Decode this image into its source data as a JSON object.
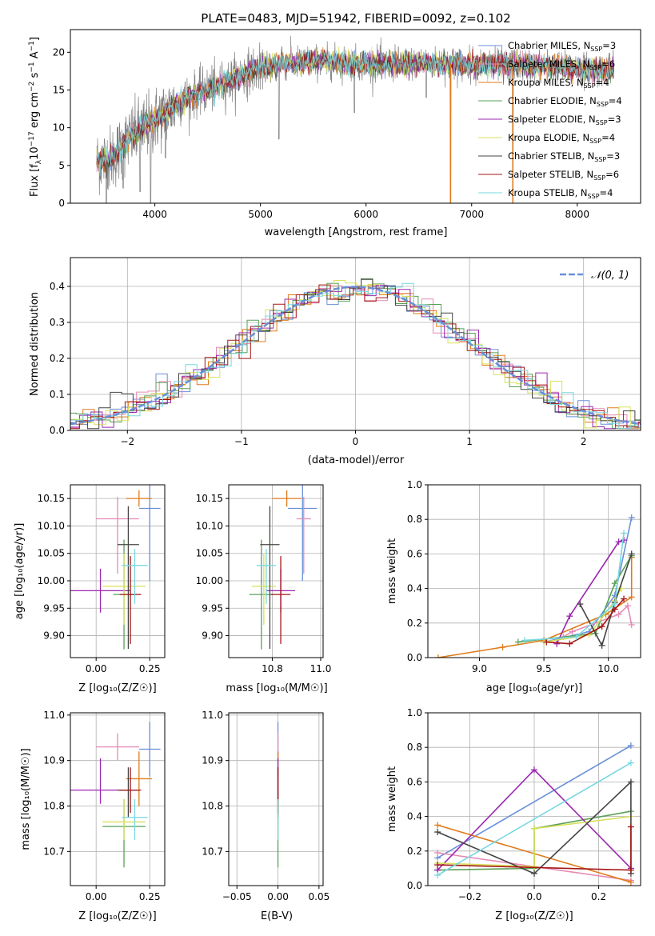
{
  "figure": {
    "title": "PLATE=0483, MJD=51942, FIBERID=0092, z=0.102"
  },
  "legend_spectrum": [
    {
      "prefix": "Chabrier MILES, N",
      "sub": "SSP",
      "suffix": "=3",
      "color": "#6a8fd8"
    },
    {
      "prefix": "Salpeter MILES, N",
      "sub": "SSP",
      "suffix": "=6",
      "color": "#e58ab5"
    },
    {
      "prefix": "Kroupa MILES, N",
      "sub": "SSP",
      "suffix": "=4",
      "color": "#e07b1a"
    },
    {
      "prefix": "Chabrier ELODIE, N",
      "sub": "SSP",
      "suffix": "=4",
      "color": "#5aa055"
    },
    {
      "prefix": "Salpeter ELODIE, N",
      "sub": "SSP",
      "suffix": "=3",
      "color": "#9b27b0"
    },
    {
      "prefix": "Kroupa ELODIE, N",
      "sub": "SSP",
      "suffix": "=4",
      "color": "#d8e05a"
    },
    {
      "prefix": "Chabrier STELIB, N",
      "sub": "SSP",
      "suffix": "=3",
      "color": "#444444"
    },
    {
      "prefix": "Salpeter STELIB, N",
      "sub": "SSP",
      "suffix": "=6",
      "color": "#a51616"
    },
    {
      "prefix": "Kroupa STELIB, N",
      "sub": "SSP",
      "suffix": "=4",
      "color": "#78d8e0"
    }
  ],
  "labels": {
    "spec_xlabel": "wavelength [Angstrom, rest frame]",
    "spec_ylabel_a": "Flux [f",
    "spec_ylabel_a_sub": "λ",
    "spec_ylabel_b": "10",
    "spec_ylabel_b_sup": "−17",
    "spec_ylabel_c": " erg cm",
    "spec_ylabel_c_sup": "−2",
    "spec_ylabel_d": " s",
    "spec_ylabel_d_sup": "−1",
    "spec_ylabel_e": " A",
    "spec_ylabel_e_sup": "−1",
    "spec_ylabel_f": "]",
    "hist_xlabel": "(data-model)/error",
    "hist_ylabel": "Normed distribution",
    "hist_legend": "𝒩(0, 1)",
    "age_label": "age  [log₁₀(age/yr)]",
    "z_label": "Z [log₁₀(Z/Z☉)]",
    "mass_label": "mass [log₁₀(M/M☉)]",
    "mw_label": "mass weight",
    "ebv_label": "E(B-V)"
  },
  "chart_data": [
    {
      "id": "spectrum",
      "type": "line",
      "title": "PLATE=0483, MJD=51942, FIBERID=0092, z=0.102",
      "xlim": [
        3200,
        8600
      ],
      "ylim": [
        0,
        23
      ],
      "xticks": [
        4000,
        5000,
        6000,
        7000,
        8000
      ],
      "yticks": [
        0,
        5,
        10,
        15,
        20
      ],
      "x_range": [
        3450,
        8350
      ],
      "continuum_points": [
        [
          3450,
          5.5
        ],
        [
          3600,
          6
        ],
        [
          3750,
          8.5
        ],
        [
          3900,
          10
        ],
        [
          4100,
          12
        ],
        [
          4300,
          14
        ],
        [
          4600,
          15.5
        ],
        [
          4900,
          17.5
        ],
        [
          5200,
          18.5
        ],
        [
          5600,
          18.8
        ],
        [
          6000,
          18.5
        ],
        [
          6500,
          18.5
        ],
        [
          7000,
          18.4
        ],
        [
          7500,
          18.3
        ],
        [
          8000,
          17.8
        ],
        [
          8350,
          17.5
        ]
      ],
      "spikes": [
        [
          3540,
          0
        ],
        [
          3700,
          2
        ],
        [
          3860,
          1.5
        ],
        [
          3960,
          0
        ],
        [
          4100,
          6
        ],
        [
          5175,
          8.5
        ],
        [
          5890,
          12
        ],
        [
          6800,
          0
        ],
        [
          6570,
          14
        ],
        [
          7390,
          0
        ]
      ]
    },
    {
      "id": "residual_hist",
      "type": "bar",
      "xlim": [
        -2.5,
        2.5
      ],
      "ylim": [
        0,
        0.48
      ],
      "xticks": [
        -2,
        -1,
        0,
        1,
        2
      ],
      "yticks": [
        0.0,
        0.1,
        0.2,
        0.3,
        0.4
      ],
      "bin_width": 0.1,
      "gaussian": {
        "mean": 0,
        "sigma": 1,
        "color": "#6a8fd8"
      }
    },
    {
      "id": "age_vs_Z",
      "type": "scatter",
      "xlim": [
        -0.12,
        0.32
      ],
      "ylim": [
        9.86,
        10.175
      ],
      "xticks": [
        0.0,
        0.25
      ],
      "yticks": [
        9.9,
        9.95,
        10.0,
        10.05,
        10.1,
        10.15
      ],
      "points": [
        {
          "x": 0.25,
          "xerr": 0.05,
          "y": 10.132,
          "yerr": 0.132,
          "yerr_lo": 0.132,
          "color": "#6a8fd8"
        },
        {
          "x": 0.1,
          "xerr": 0.1,
          "y": 10.113,
          "yerr_lo": 0.1,
          "yerr": 0.04,
          "color": "#e58ab5"
        },
        {
          "x": 0.2,
          "xerr": 0.06,
          "y": 10.15,
          "yerr": 0.015,
          "yerr_lo": 0.015,
          "color": "#e07b1a"
        },
        {
          "x": 0.13,
          "xerr": 0.05,
          "y": 9.975,
          "yerr": 0.1,
          "yerr_lo": 0.1,
          "color": "#5aa055"
        },
        {
          "x": 0.02,
          "xerr": 0.14,
          "y": 9.982,
          "yerr": 0.04,
          "yerr_lo": 0.04,
          "color": "#9b27b0"
        },
        {
          "x": 0.13,
          "xerr": 0.1,
          "y": 9.99,
          "yerr": 0.06,
          "yerr_lo": 0.07,
          "color": "#d8e05a"
        },
        {
          "x": 0.15,
          "xerr": 0.05,
          "y": 10.066,
          "yerr": 0.07,
          "yerr_lo": 0.19,
          "color": "#444444"
        },
        {
          "x": 0.16,
          "xerr": 0.05,
          "y": 9.975,
          "yerr": 0.07,
          "yerr_lo": 0.09,
          "color": "#a51616"
        },
        {
          "x": 0.18,
          "xerr": 0.06,
          "y": 10.028,
          "yerr": 0.03,
          "yerr_lo": 0.07,
          "color": "#78d8e0"
        }
      ]
    },
    {
      "id": "age_vs_mass",
      "type": "scatter",
      "xlim": [
        10.62,
        11.01
      ],
      "ylim": [
        9.86,
        10.175
      ],
      "xticks": [
        10.8,
        11.0
      ],
      "yticks": [
        9.9,
        9.95,
        10.0,
        10.05,
        10.1,
        10.15
      ],
      "points": [
        {
          "x": 10.925,
          "xerr": 0.06,
          "y": 10.132,
          "yerr": 0.132,
          "yerr_lo": 0.132,
          "color": "#6a8fd8"
        },
        {
          "x": 10.93,
          "xerr": 0.03,
          "y": 10.113,
          "yerr": 0.04,
          "yerr_lo": 0.1,
          "color": "#e58ab5"
        },
        {
          "x": 10.86,
          "xerr": 0.06,
          "y": 10.15,
          "yerr": 0.015,
          "yerr_lo": 0.015,
          "color": "#e07b1a"
        },
        {
          "x": 10.755,
          "xerr": 0.05,
          "y": 9.975,
          "yerr": 0.1,
          "yerr_lo": 0.1,
          "color": "#5aa055"
        },
        {
          "x": 10.835,
          "xerr": 0.06,
          "y": 9.982,
          "yerr": 0.04,
          "yerr_lo": 0.04,
          "color": "#9b27b0"
        },
        {
          "x": 10.765,
          "xerr": 0.05,
          "y": 9.99,
          "yerr": 0.06,
          "yerr_lo": 0.07,
          "color": "#d8e05a"
        },
        {
          "x": 10.79,
          "xerr": 0.04,
          "y": 10.066,
          "yerr": 0.07,
          "yerr_lo": 0.19,
          "color": "#444444"
        },
        {
          "x": 10.835,
          "xerr": 0.04,
          "y": 9.975,
          "yerr": 0.07,
          "yerr_lo": 0.09,
          "color": "#a51616"
        },
        {
          "x": 10.775,
          "xerr": 0.04,
          "y": 10.028,
          "yerr": 0.03,
          "yerr_lo": 0.07,
          "color": "#78d8e0"
        }
      ]
    },
    {
      "id": "massweight_vs_age",
      "type": "line",
      "xlim": [
        8.6,
        10.25
      ],
      "ylim": [
        0,
        1.0
      ],
      "xticks": [
        9.0,
        9.5,
        10.0
      ],
      "yticks": [
        0.0,
        0.2,
        0.4,
        0.6,
        0.8,
        1.0
      ],
      "series": [
        {
          "color": "#6a8fd8",
          "x": [
            9.5,
            9.85,
            10.05,
            10.18
          ],
          "y": [
            0.09,
            0.15,
            0.36,
            0.81
          ]
        },
        {
          "color": "#e58ab5",
          "x": [
            9.65,
            9.72,
            10.08,
            10.15,
            10.18
          ],
          "y": [
            0.12,
            0.15,
            0.25,
            0.3,
            0.19
          ]
        },
        {
          "color": "#e07b1a",
          "x": [
            8.68,
            9.18,
            9.5,
            9.98,
            10.18,
            10.18
          ],
          "y": [
            0.0,
            0.06,
            0.1,
            0.25,
            0.35,
            0.58
          ]
        },
        {
          "color": "#5aa055",
          "x": [
            9.3,
            9.9,
            10.05,
            10.18
          ],
          "y": [
            0.09,
            0.14,
            0.43,
            0.59
          ]
        },
        {
          "color": "#9b27b0",
          "x": [
            9.6,
            9.7,
            10.08,
            10.12
          ],
          "y": [
            0.08,
            0.24,
            0.67,
            0.68
          ]
        },
        {
          "color": "#d8e05a",
          "x": [
            9.5,
            9.85,
            10.05,
            10.1
          ],
          "y": [
            0.09,
            0.13,
            0.33,
            0.4
          ]
        },
        {
          "color": "#444444",
          "x": [
            9.78,
            9.95,
            10.05,
            10.18
          ],
          "y": [
            0.31,
            0.07,
            0.32,
            0.6
          ]
        },
        {
          "color": "#a51616",
          "x": [
            9.52,
            9.7,
            9.95,
            10.05,
            10.12
          ],
          "y": [
            0.09,
            0.08,
            0.18,
            0.28,
            0.34
          ]
        },
        {
          "color": "#78d8e0",
          "x": [
            9.35,
            9.75,
            10.05,
            10.12
          ],
          "y": [
            0.1,
            0.12,
            0.31,
            0.72
          ]
        }
      ]
    },
    {
      "id": "mass_vs_Z",
      "type": "scatter",
      "xlim": [
        -0.12,
        0.32
      ],
      "ylim": [
        10.625,
        11.005
      ],
      "xticks": [
        0.0,
        0.25
      ],
      "yticks": [
        10.7,
        10.8,
        10.9,
        11.0
      ],
      "points": [
        {
          "x": 0.25,
          "xerr": 0.05,
          "y": 10.925,
          "yerr": 0.06,
          "yerr_lo": 0.06,
          "color": "#6a8fd8"
        },
        {
          "x": 0.1,
          "xerr": 0.1,
          "y": 10.93,
          "yerr": 0.03,
          "yerr_lo": 0.03,
          "color": "#e58ab5"
        },
        {
          "x": 0.2,
          "xerr": 0.06,
          "y": 10.86,
          "yerr": 0.06,
          "yerr_lo": 0.06,
          "color": "#e07b1a"
        },
        {
          "x": 0.13,
          "xerr": 0.1,
          "y": 10.755,
          "yerr": 0.06,
          "yerr_lo": 0.09,
          "color": "#5aa055"
        },
        {
          "x": 0.02,
          "xerr": 0.14,
          "y": 10.835,
          "yerr": 0.07,
          "yerr_lo": 0.03,
          "color": "#9b27b0"
        },
        {
          "x": 0.13,
          "xerr": 0.1,
          "y": 10.765,
          "yerr": 0.05,
          "yerr_lo": 0.04,
          "color": "#d8e05a"
        },
        {
          "x": 0.15,
          "xerr": 0.05,
          "y": 10.835,
          "yerr": 0.05,
          "yerr_lo": 0.06,
          "color": "#444444"
        },
        {
          "x": 0.16,
          "xerr": 0.05,
          "y": 10.835,
          "yerr": 0.05,
          "yerr_lo": 0.05,
          "color": "#a51616"
        },
        {
          "x": 0.18,
          "xerr": 0.06,
          "y": 10.775,
          "yerr": 0.04,
          "yerr_lo": 0.05,
          "color": "#78d8e0"
        }
      ]
    },
    {
      "id": "mass_vs_ebv",
      "type": "scatter",
      "xlim": [
        -0.06,
        0.055
      ],
      "ylim": [
        10.625,
        11.005
      ],
      "xticks": [
        -0.05,
        0.0,
        0.05
      ],
      "yticks": [
        10.7,
        10.8,
        10.9,
        11.0
      ],
      "points": [
        {
          "x": 0,
          "xerr": 0,
          "y": 10.925,
          "yerr": 0.06,
          "yerr_lo": 0.06,
          "color": "#6a8fd8"
        },
        {
          "x": 0,
          "xerr": 0,
          "y": 10.93,
          "yerr": 0.03,
          "yerr_lo": 0.03,
          "color": "#e58ab5"
        },
        {
          "x": 0,
          "xerr": 0,
          "y": 10.86,
          "yerr": 0.06,
          "yerr_lo": 0.06,
          "color": "#e07b1a"
        },
        {
          "x": 0,
          "xerr": 0,
          "y": 10.755,
          "yerr": 0.06,
          "yerr_lo": 0.09,
          "color": "#5aa055"
        },
        {
          "x": 0,
          "xerr": 0,
          "y": 10.835,
          "yerr": 0.07,
          "yerr_lo": 0.03,
          "color": "#9b27b0"
        },
        {
          "x": 0,
          "xerr": 0,
          "y": 10.765,
          "yerr": 0.05,
          "yerr_lo": 0.04,
          "color": "#d8e05a"
        },
        {
          "x": 0,
          "xerr": 0,
          "y": 10.835,
          "yerr": 0.05,
          "yerr_lo": 0.06,
          "color": "#444444"
        },
        {
          "x": 0,
          "xerr": 0,
          "y": 10.835,
          "yerr": 0.05,
          "yerr_lo": 0.05,
          "color": "#a51616"
        },
        {
          "x": 0,
          "xerr": 0,
          "y": 10.775,
          "yerr": 0.04,
          "yerr_lo": 0.05,
          "color": "#78d8e0"
        }
      ]
    },
    {
      "id": "massweight_vs_Z",
      "type": "line",
      "xlim": [
        -0.33,
        0.33
      ],
      "ylim": [
        0,
        1.0
      ],
      "xticks": [
        -0.2,
        0.0,
        0.2
      ],
      "yticks": [
        0.0,
        0.2,
        0.4,
        0.6,
        0.8,
        1.0
      ],
      "series": [
        {
          "color": "#6a8fd8",
          "x": [
            -0.3,
            0.3
          ],
          "y": [
            0.16,
            0.81
          ]
        },
        {
          "color": "#e58ab5",
          "x": [
            -0.3,
            0.3
          ],
          "y": [
            0.19,
            0.03
          ]
        },
        {
          "color": "#e07b1a",
          "x": [
            -0.3,
            0.3
          ],
          "y": [
            0.35,
            0.02
          ]
        },
        {
          "color": "#5aa055",
          "x": [
            -0.3,
            0.0,
            0.0,
            0.3
          ],
          "y": [
            0.09,
            0.1,
            0.33,
            0.43
          ]
        },
        {
          "color": "#9b27b0",
          "x": [
            -0.3,
            0.0,
            0.3
          ],
          "y": [
            0.09,
            0.67,
            0.1
          ]
        },
        {
          "color": "#d8e05a",
          "x": [
            -0.3,
            0.0,
            0.0,
            0.3
          ],
          "y": [
            0.13,
            0.11,
            0.33,
            0.4
          ]
        },
        {
          "color": "#444444",
          "x": [
            -0.3,
            0.0,
            0.3,
            0.3
          ],
          "y": [
            0.31,
            0.07,
            0.6,
            0.07
          ]
        },
        {
          "color": "#a51616",
          "x": [
            -0.3,
            0.3,
            0.3
          ],
          "y": [
            0.12,
            0.09,
            0.34
          ]
        },
        {
          "color": "#78d8e0",
          "x": [
            -0.3,
            0.3
          ],
          "y": [
            0.06,
            0.71
          ]
        }
      ]
    }
  ]
}
